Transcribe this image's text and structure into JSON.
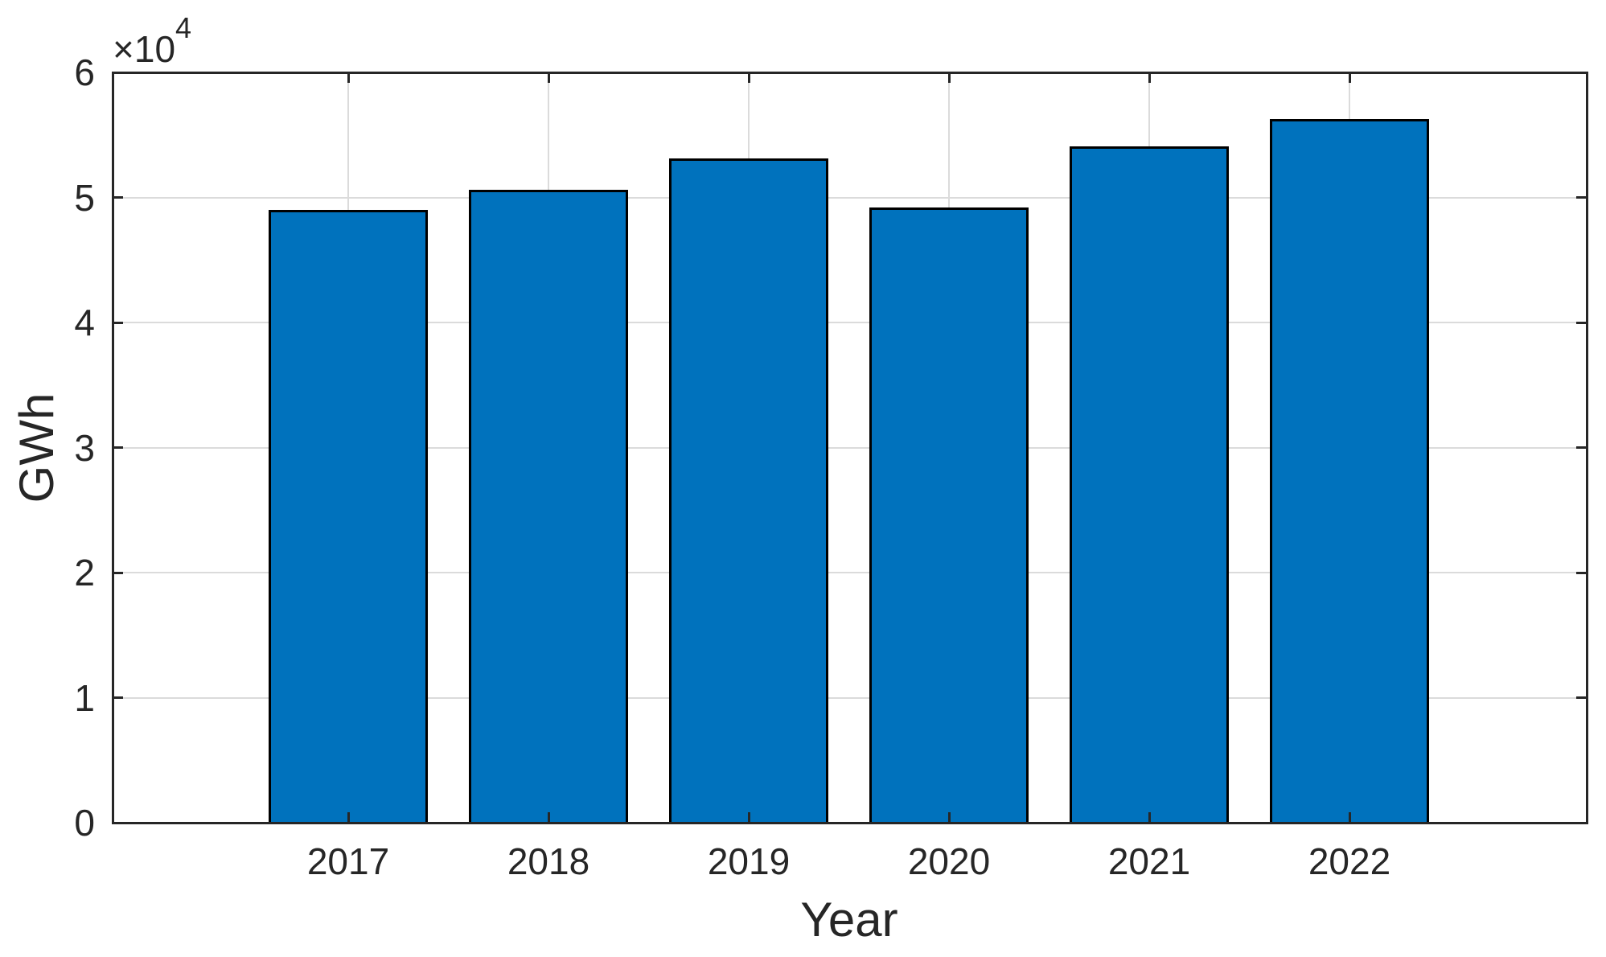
{
  "chart_data": {
    "type": "bar",
    "title": "",
    "categories": [
      "2017",
      "2018",
      "2019",
      "2020",
      "2021",
      "2022"
    ],
    "values": [
      49000,
      50600,
      53100,
      49200,
      54100,
      56300
    ],
    "xlabel": "Year",
    "ylabel": "GWh",
    "ylim": [
      0,
      60000
    ],
    "ytick_values": [
      0,
      10000,
      20000,
      30000,
      40000,
      50000,
      60000
    ],
    "ytick_labels": [
      "0",
      "1",
      "2",
      "3",
      "4",
      "5",
      "6"
    ],
    "y_multiplier": {
      "base": "×10",
      "exponent": "4"
    },
    "grid": true,
    "grid_axes": "both",
    "legend": null,
    "bar_color": "#0072BD",
    "bar_edge_color": "#000000",
    "axis_color": "#262626",
    "grid_color": "#DBDBDB",
    "background_color": "#FFFFFF"
  }
}
